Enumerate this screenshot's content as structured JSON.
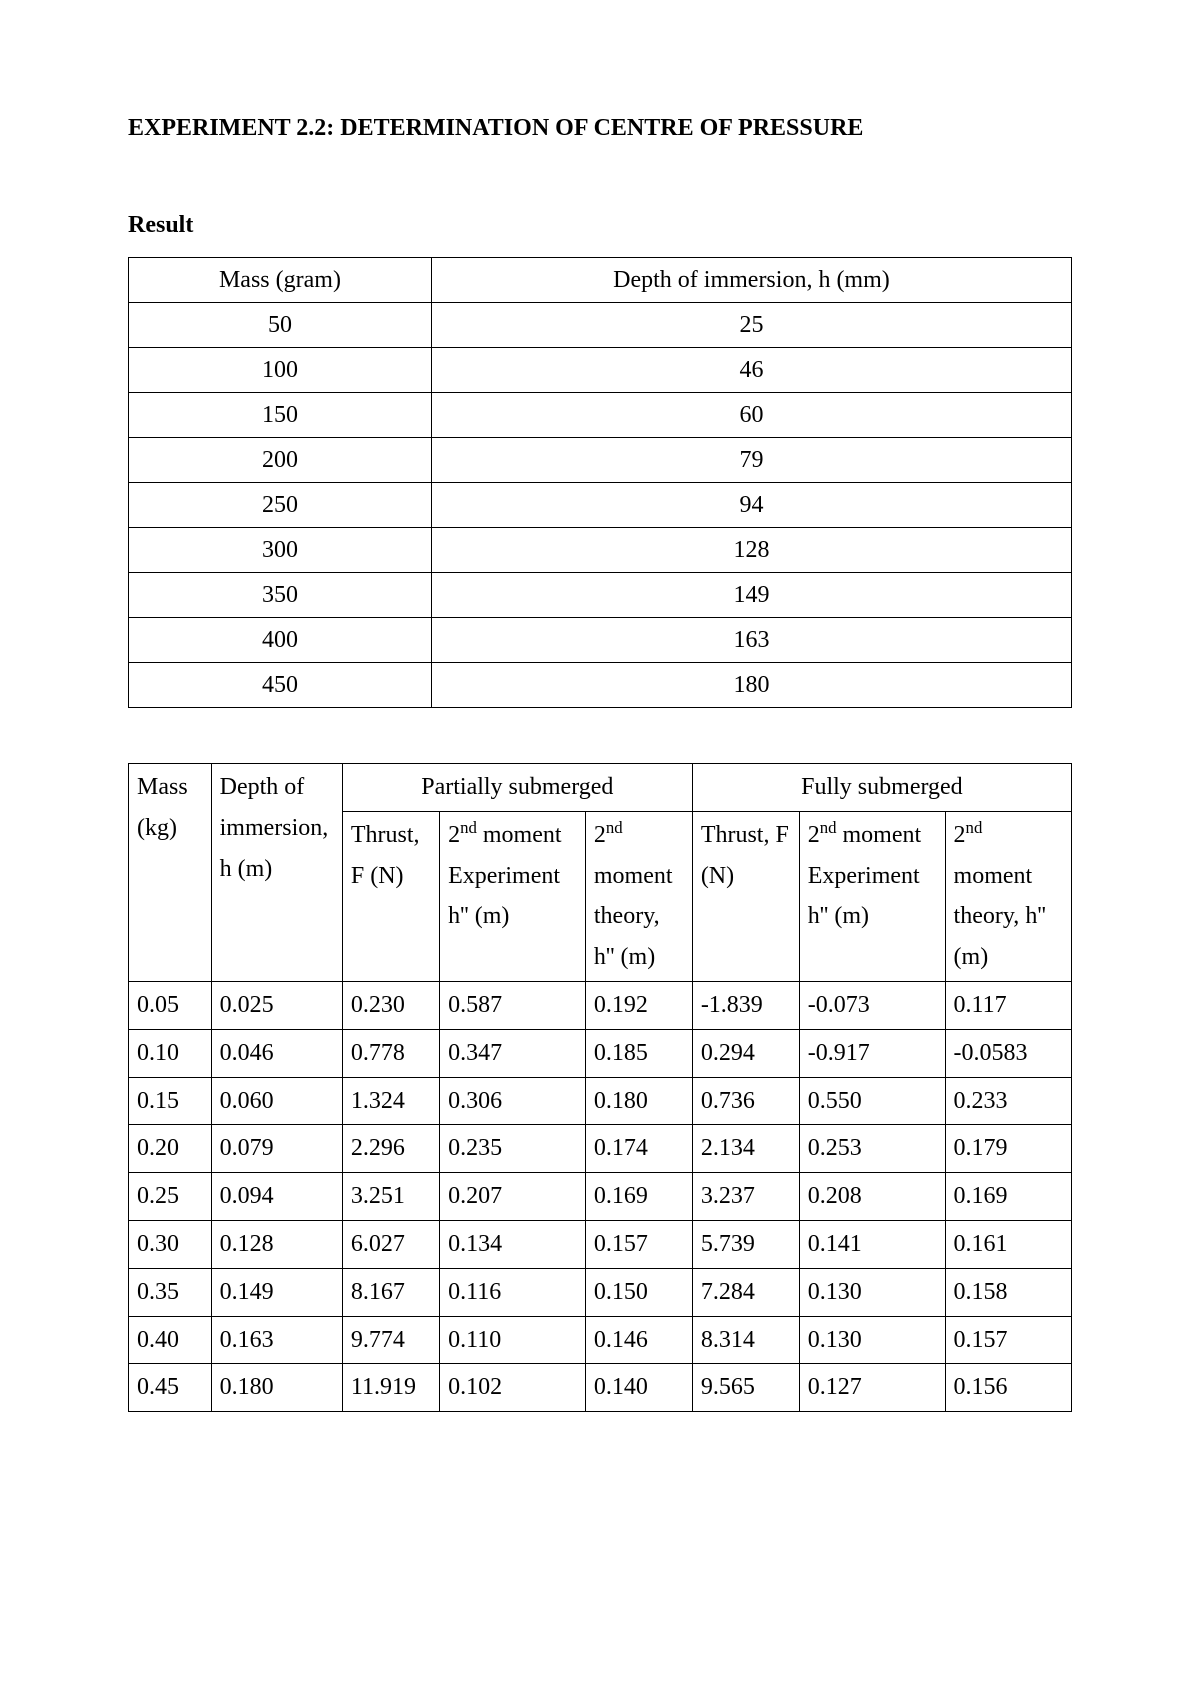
{
  "title": "EXPERIMENT 2.2: DETERMINATION OF CENTRE OF PRESSURE",
  "section_label": "Result",
  "table1": {
    "columns": [
      "Mass (gram)",
      "Depth of immersion, h (mm)"
    ],
    "rows": [
      [
        "50",
        "25"
      ],
      [
        "100",
        "46"
      ],
      [
        "150",
        "60"
      ],
      [
        "200",
        "79"
      ],
      [
        "250",
        "94"
      ],
      [
        "300",
        "128"
      ],
      [
        "350",
        "149"
      ],
      [
        "400",
        "163"
      ],
      [
        "450",
        "180"
      ]
    ]
  },
  "table2": {
    "col_mass": "Mass (kg)",
    "col_depth": "Depth of immersion, h (m)",
    "group_partial": "Partially submerged",
    "group_full": "Fully submerged",
    "sub_thrust": "Thrust, F (N)",
    "sub_moment_exp_pre": "2",
    "sub_moment_exp_sup": "nd",
    "sub_moment_exp_line2": "moment",
    "sub_moment_exp_line3": "Experiment",
    "sub_moment_exp_line4": "h'' (m)",
    "sub_moment_theory_line2": "moment",
    "sub_moment_theory_line3": "theory,",
    "sub_moment_theory_line4": "h'' (m)",
    "rows": [
      [
        "0.05",
        "0.025",
        "0.230",
        "0.587",
        "0.192",
        "-1.839",
        "-0.073",
        "0.117"
      ],
      [
        "0.10",
        "0.046",
        "0.778",
        "0.347",
        "0.185",
        "0.294",
        "-0.917",
        "-0.0583"
      ],
      [
        "0.15",
        "0.060",
        "1.324",
        "0.306",
        "0.180",
        "0.736",
        "0.550",
        "0.233"
      ],
      [
        "0.20",
        "0.079",
        "2.296",
        "0.235",
        "0.174",
        "2.134",
        "0.253",
        "0.179"
      ],
      [
        "0.25",
        "0.094",
        "3.251",
        "0.207",
        "0.169",
        "3.237",
        "0.208",
        "0.169"
      ],
      [
        "0.30",
        "0.128",
        "6.027",
        "0.134",
        "0.157",
        "5.739",
        "0.141",
        "0.161"
      ],
      [
        "0.35",
        "0.149",
        "8.167",
        "0.116",
        "0.150",
        "7.284",
        "0.130",
        "0.158"
      ],
      [
        "0.40",
        "0.163",
        "9.774",
        "0.110",
        "0.146",
        "8.314",
        "0.130",
        "0.157"
      ],
      [
        "0.45",
        "0.180",
        "11.919",
        "0.102",
        "0.140",
        "9.565",
        "0.127",
        "0.156"
      ]
    ],
    "col_widths_pct": [
      8.5,
      13.5,
      10,
      15,
      11,
      11,
      15,
      13
    ]
  }
}
